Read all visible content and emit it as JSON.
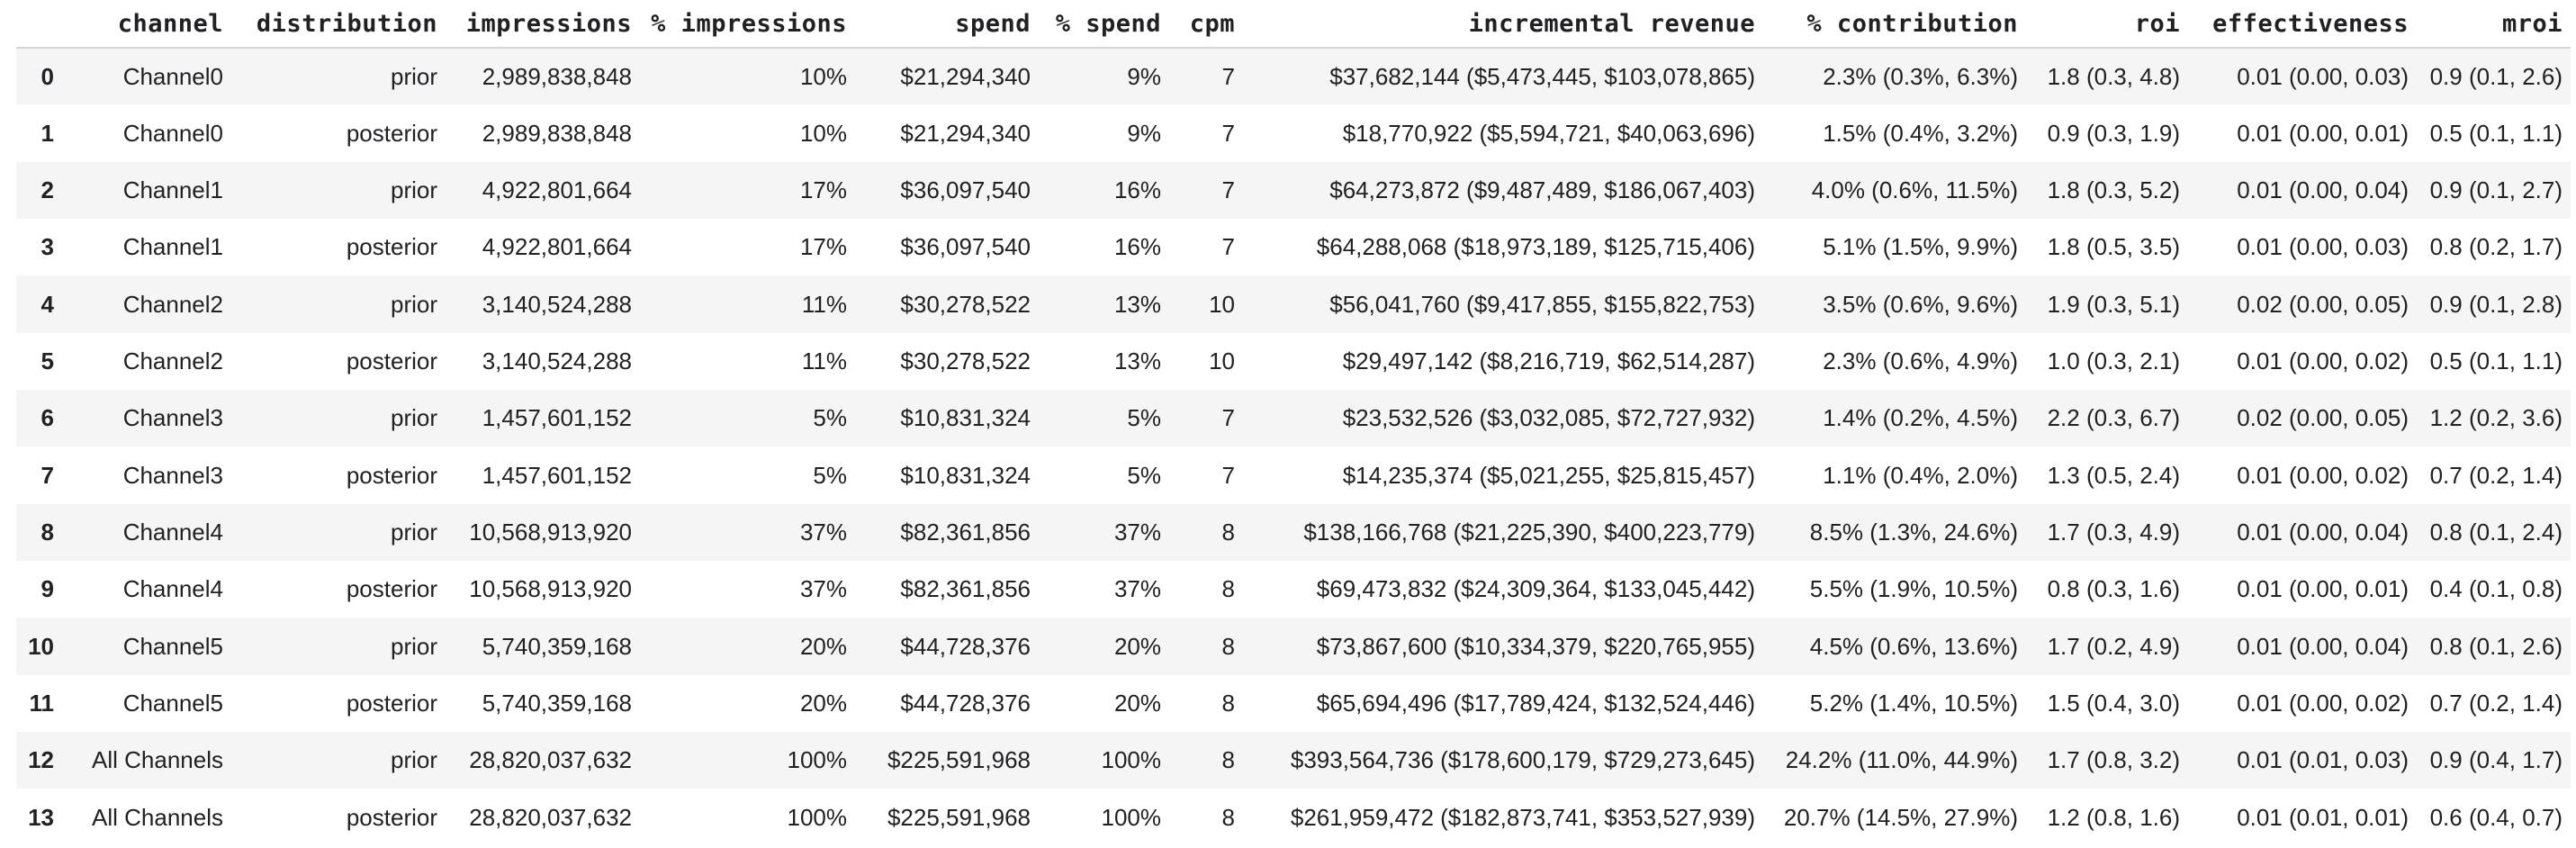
{
  "table": {
    "index_header": "",
    "columns": [
      "channel",
      "distribution",
      "impressions",
      "% impressions",
      "spend",
      "% spend",
      "cpm",
      "incremental revenue",
      "% contribution",
      "roi",
      "effectiveness",
      "mroi"
    ],
    "rows": [
      {
        "index": "0",
        "cells": [
          "Channel0",
          "prior",
          "2,989,838,848",
          "10%",
          "$21,294,340",
          "9%",
          "7",
          "$37,682,144 ($5,473,445, $103,078,865)",
          "2.3% (0.3%, 6.3%)",
          "1.8 (0.3, 4.8)",
          "0.01 (0.00, 0.03)",
          "0.9 (0.1, 2.6)"
        ]
      },
      {
        "index": "1",
        "cells": [
          "Channel0",
          "posterior",
          "2,989,838,848",
          "10%",
          "$21,294,340",
          "9%",
          "7",
          "$18,770,922 ($5,594,721, $40,063,696)",
          "1.5% (0.4%, 3.2%)",
          "0.9 (0.3, 1.9)",
          "0.01 (0.00, 0.01)",
          "0.5 (0.1, 1.1)"
        ]
      },
      {
        "index": "2",
        "cells": [
          "Channel1",
          "prior",
          "4,922,801,664",
          "17%",
          "$36,097,540",
          "16%",
          "7",
          "$64,273,872 ($9,487,489, $186,067,403)",
          "4.0% (0.6%, 11.5%)",
          "1.8 (0.3, 5.2)",
          "0.01 (0.00, 0.04)",
          "0.9 (0.1, 2.7)"
        ]
      },
      {
        "index": "3",
        "cells": [
          "Channel1",
          "posterior",
          "4,922,801,664",
          "17%",
          "$36,097,540",
          "16%",
          "7",
          "$64,288,068 ($18,973,189, $125,715,406)",
          "5.1% (1.5%, 9.9%)",
          "1.8 (0.5, 3.5)",
          "0.01 (0.00, 0.03)",
          "0.8 (0.2, 1.7)"
        ]
      },
      {
        "index": "4",
        "cells": [
          "Channel2",
          "prior",
          "3,140,524,288",
          "11%",
          "$30,278,522",
          "13%",
          "10",
          "$56,041,760 ($9,417,855, $155,822,753)",
          "3.5% (0.6%, 9.6%)",
          "1.9 (0.3, 5.1)",
          "0.02 (0.00, 0.05)",
          "0.9 (0.1, 2.8)"
        ]
      },
      {
        "index": "5",
        "cells": [
          "Channel2",
          "posterior",
          "3,140,524,288",
          "11%",
          "$30,278,522",
          "13%",
          "10",
          "$29,497,142 ($8,216,719, $62,514,287)",
          "2.3% (0.6%, 4.9%)",
          "1.0 (0.3, 2.1)",
          "0.01 (0.00, 0.02)",
          "0.5 (0.1, 1.1)"
        ]
      },
      {
        "index": "6",
        "cells": [
          "Channel3",
          "prior",
          "1,457,601,152",
          "5%",
          "$10,831,324",
          "5%",
          "7",
          "$23,532,526 ($3,032,085, $72,727,932)",
          "1.4% (0.2%, 4.5%)",
          "2.2 (0.3, 6.7)",
          "0.02 (0.00, 0.05)",
          "1.2 (0.2, 3.6)"
        ]
      },
      {
        "index": "7",
        "cells": [
          "Channel3",
          "posterior",
          "1,457,601,152",
          "5%",
          "$10,831,324",
          "5%",
          "7",
          "$14,235,374 ($5,021,255, $25,815,457)",
          "1.1% (0.4%, 2.0%)",
          "1.3 (0.5, 2.4)",
          "0.01 (0.00, 0.02)",
          "0.7 (0.2, 1.4)"
        ]
      },
      {
        "index": "8",
        "cells": [
          "Channel4",
          "prior",
          "10,568,913,920",
          "37%",
          "$82,361,856",
          "37%",
          "8",
          "$138,166,768 ($21,225,390, $400,223,779)",
          "8.5% (1.3%, 24.6%)",
          "1.7 (0.3, 4.9)",
          "0.01 (0.00, 0.04)",
          "0.8 (0.1, 2.4)"
        ]
      },
      {
        "index": "9",
        "cells": [
          "Channel4",
          "posterior",
          "10,568,913,920",
          "37%",
          "$82,361,856",
          "37%",
          "8",
          "$69,473,832 ($24,309,364, $133,045,442)",
          "5.5% (1.9%, 10.5%)",
          "0.8 (0.3, 1.6)",
          "0.01 (0.00, 0.01)",
          "0.4 (0.1, 0.8)"
        ]
      },
      {
        "index": "10",
        "cells": [
          "Channel5",
          "prior",
          "5,740,359,168",
          "20%",
          "$44,728,376",
          "20%",
          "8",
          "$73,867,600 ($10,334,379, $220,765,955)",
          "4.5% (0.6%, 13.6%)",
          "1.7 (0.2, 4.9)",
          "0.01 (0.00, 0.04)",
          "0.8 (0.1, 2.6)"
        ]
      },
      {
        "index": "11",
        "cells": [
          "Channel5",
          "posterior",
          "5,740,359,168",
          "20%",
          "$44,728,376",
          "20%",
          "8",
          "$65,694,496 ($17,789,424, $132,524,446)",
          "5.2% (1.4%, 10.5%)",
          "1.5 (0.4, 3.0)",
          "0.01 (0.00, 0.02)",
          "0.7 (0.2, 1.4)"
        ]
      },
      {
        "index": "12",
        "cells": [
          "All Channels",
          "prior",
          "28,820,037,632",
          "100%",
          "$225,591,968",
          "100%",
          "8",
          "$393,564,736 ($178,600,179, $729,273,645)",
          "24.2% (11.0%, 44.9%)",
          "1.7 (0.8, 3.2)",
          "0.01 (0.01, 0.03)",
          "0.9 (0.4, 1.7)"
        ]
      },
      {
        "index": "13",
        "cells": [
          "All Channels",
          "posterior",
          "28,820,037,632",
          "100%",
          "$225,591,968",
          "100%",
          "8",
          "$261,959,472 ($182,873,741, $353,527,939)",
          "20.7% (14.5%, 27.9%)",
          "1.2 (0.8, 1.6)",
          "0.01 (0.01, 0.01)",
          "0.6 (0.4, 0.7)"
        ]
      }
    ]
  },
  "colors": {
    "text": "#202124",
    "row_stripe": "#f5f5f5",
    "header_border": "#d5d5d5",
    "background": "#ffffff"
  }
}
